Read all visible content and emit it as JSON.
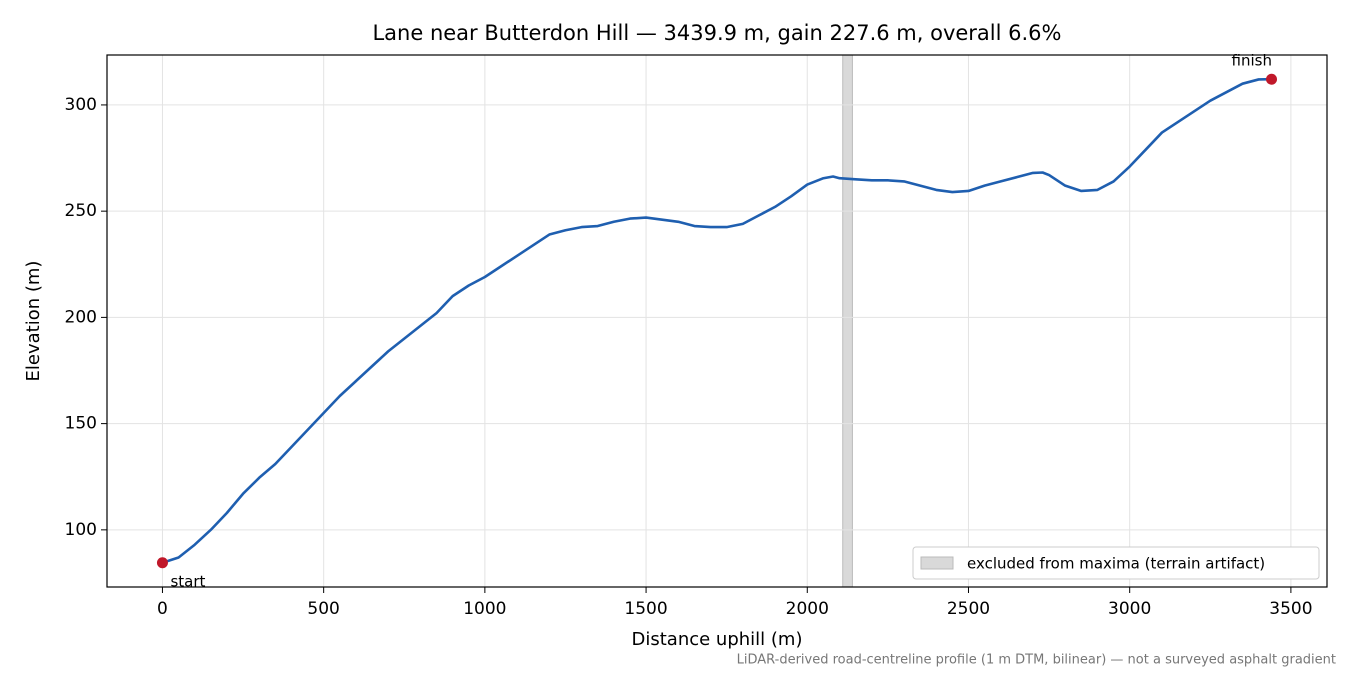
{
  "chart_data": {
    "type": "line",
    "title": "Lane near Butterdon Hill — 3439.9 m, gain 227.6 m, overall 6.6%",
    "x_label": "Distance uphill (m)",
    "y_label": "Elevation (m)",
    "footnote": "LiDAR-derived road-centreline profile (1 m DTM, bilinear) — not a surveyed asphalt gradient",
    "x": [
      0,
      50,
      100,
      150,
      200,
      250,
      300,
      350,
      400,
      450,
      500,
      550,
      600,
      650,
      700,
      750,
      800,
      850,
      900,
      950,
      1000,
      1050,
      1100,
      1150,
      1200,
      1250,
      1300,
      1350,
      1400,
      1450,
      1500,
      1550,
      1600,
      1650,
      1700,
      1750,
      1800,
      1850,
      1900,
      1950,
      2000,
      2050,
      2080,
      2100,
      2150,
      2200,
      2250,
      2300,
      2350,
      2400,
      2450,
      2500,
      2550,
      2600,
      2650,
      2700,
      2730,
      2750,
      2800,
      2850,
      2900,
      2950,
      3000,
      3050,
      3100,
      3150,
      3200,
      3250,
      3300,
      3350,
      3400,
      3439.9
    ],
    "series": [
      {
        "name": "profile",
        "color": "#1f5fb0",
        "values": [
          84.5,
          87,
          93,
          100,
          108,
          117,
          124.5,
          131,
          139,
          147,
          155,
          163,
          170,
          177,
          184,
          190,
          196,
          202,
          210,
          215,
          219,
          224,
          229,
          234,
          239,
          241,
          242.5,
          243,
          245,
          246.5,
          247,
          246,
          245,
          243,
          242.5,
          242.5,
          244,
          248,
          252,
          257,
          262.5,
          265.5,
          266.3,
          265.5,
          265,
          264.5,
          264.5,
          264,
          262,
          260,
          259,
          259.5,
          262,
          264,
          266,
          268,
          268.2,
          267,
          262,
          259.5,
          260,
          264,
          271,
          279,
          287,
          292,
          297,
          302,
          306,
          310,
          312,
          312.1
        ]
      }
    ],
    "endpoints": {
      "x": [
        0,
        3439.9
      ],
      "values": [
        84.5,
        312.1
      ],
      "labels": [
        "start",
        "finish"
      ],
      "color": "#c0182a"
    },
    "span": {
      "x": [
        2110,
        2140
      ],
      "label": "excluded from maxima (terrain artifact)",
      "color": "#d9d9d9"
    },
    "xlim": [
      -172,
      3612
    ],
    "ylim": [
      73.1,
      323.5
    ],
    "xticks": [
      0,
      500,
      1000,
      1500,
      2000,
      2500,
      3000,
      3500
    ],
    "yticks": [
      100,
      150,
      200,
      250,
      300
    ],
    "grid": true,
    "legend": "lower right"
  }
}
